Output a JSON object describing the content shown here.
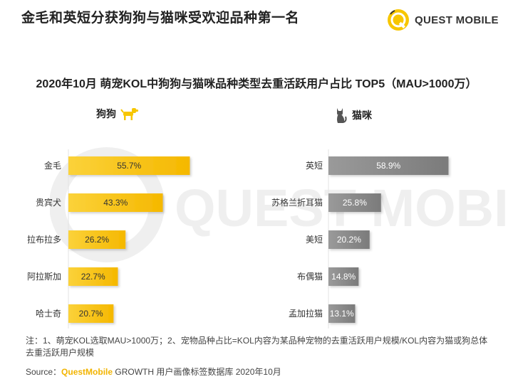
{
  "headline": "金毛和英短分获狗狗与猫咪受欢迎品种第一名",
  "brand": {
    "name": "QUEST MOBILE",
    "logo_icon": "questmobile-logo-icon",
    "color": "#f7c600"
  },
  "chart_title": "2020年10月 萌宠KOL中狗狗与猫咪品种类型去重活跃用户占比 TOP5（MAU>1000万）",
  "watermark": "QUEST MOBILE",
  "chart_data": [
    {
      "type": "bar",
      "orientation": "horizontal",
      "title": "狗狗",
      "icon": "dog-icon",
      "color": "#f7c600",
      "categories": [
        "金毛",
        "贵宾犬",
        "拉布拉多",
        "阿拉斯加",
        "哈士奇"
      ],
      "values": [
        55.7,
        43.3,
        26.2,
        22.7,
        20.7
      ],
      "labels": [
        "55.7%",
        "43.3%",
        "26.2%",
        "22.7%",
        "20.7%"
      ],
      "unit": "%",
      "xlim": [
        0,
        60
      ]
    },
    {
      "type": "bar",
      "orientation": "horizontal",
      "title": "猫咪",
      "icon": "cat-icon",
      "color": "#8a8a8a",
      "categories": [
        "英短",
        "苏格兰折耳猫",
        "美短",
        "布偶猫",
        "孟加拉猫"
      ],
      "values": [
        58.9,
        25.8,
        20.2,
        14.8,
        13.1
      ],
      "labels": [
        "58.9%",
        "25.8%",
        "20.2%",
        "14.8%",
        "13.1%"
      ],
      "unit": "%",
      "xlim": [
        0,
        60
      ]
    }
  ],
  "note": "注：1、萌宠KOL选取MAU>1000万；2、宠物品种占比=KOL内容为某品种宠物的去重活跃用户规模/KOL内容为猫或狗总体去重活跃用户规模",
  "source": {
    "prefix": "Source：",
    "brand": "QuestMobile",
    "rest": " GROWTH 用户画像标签数据库 2020年10月"
  }
}
